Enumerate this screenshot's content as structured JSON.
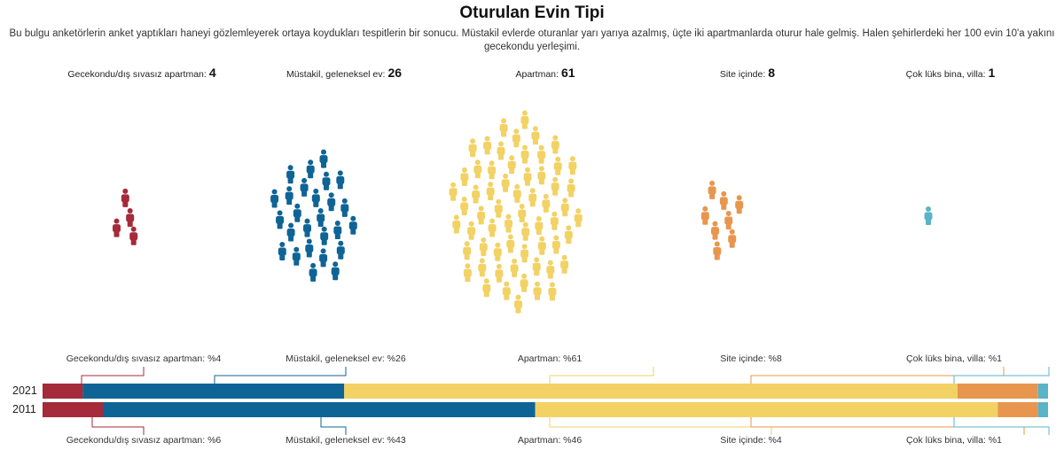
{
  "title": "Oturulan Evin Tipi",
  "subtitle": "Bu bulgu anketörlerin anket yaptıkları haneyi gözlemleyerek ortaya koydukları tespitlerin bir sonucu. Müstakil evlerde oturanlar yarı yarıya azalmış, üçte iki apartmanlarda oturur hale gelmiş. Halen şehirlerdeki her 100 evin 10'a yakını gecekondu yerleşimi.",
  "chart_data": [
    {
      "type": "pictogram",
      "unit": "people icons per 100 homes",
      "categories": [
        "Gecekondu/dış sıvasız apartman",
        "Müstakil, geleneksel ev",
        "Apartman",
        "Site içinde",
        "Çok lüks bina, villa"
      ],
      "values": [
        4,
        26,
        61,
        8,
        1
      ],
      "labels": [
        "Gecekondu/dış sıvasız apartman:",
        "Müstakil, geleneksel ev:",
        "Apartman:",
        "Site içinde:",
        "Çok lüks bina, villa:"
      ],
      "colors": [
        "#a52a3a",
        "#0f6496",
        "#f2d264",
        "#e8964e",
        "#5ab4c8"
      ]
    },
    {
      "type": "stacked-bar",
      "categories": [
        "2021",
        "2011"
      ],
      "series": [
        {
          "name": "Gecekondu/dış sıvasız apartman",
          "values": [
            4,
            6
          ],
          "color": "#a52a3a"
        },
        {
          "name": "Müstakil, geleneksel ev",
          "values": [
            26,
            43
          ],
          "color": "#0f6496"
        },
        {
          "name": "Apartman",
          "values": [
            61,
            46
          ],
          "color": "#f2d264"
        },
        {
          "name": "Site içinde",
          "values": [
            8,
            4
          ],
          "color": "#e8964e"
        },
        {
          "name": "Çok lüks bina, villa",
          "values": [
            1,
            1
          ],
          "color": "#5ab4c8"
        }
      ],
      "labels_2021": [
        "Gecekondu/dış sıvasız apartman: %4",
        "Müstakil, geleneksel ev: %26",
        "Apartman: %61",
        "Site içinde: %8",
        "Çok lüks bina, villa: %1"
      ],
      "labels_2011": [
        "Gecekondu/dış sıvasız apartman: %6",
        "Müstakil, geleneksel ev: %43",
        "Apartman: %46",
        "Site içinde: %4",
        "Çok lüks bina, villa: %1"
      ]
    }
  ]
}
